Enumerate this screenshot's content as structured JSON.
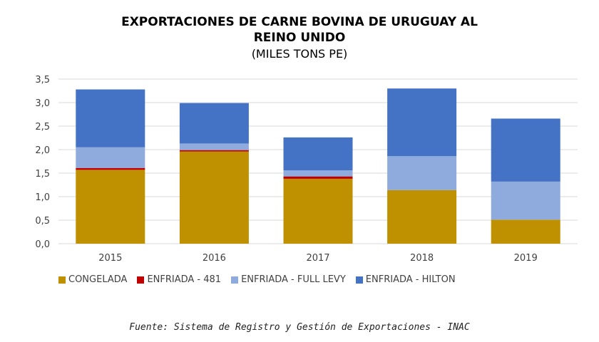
{
  "chart_data": {
    "type": "bar",
    "stacked": true,
    "title": "EXPORTACIONES DE CARNE BOVINA DE URUGUAY AL",
    "title_line2": "REINO UNIDO",
    "subtitle": "(MILES TONS PE)",
    "categories": [
      "2015",
      "2016",
      "2017",
      "2018",
      "2019"
    ],
    "ylim": [
      0,
      3.5
    ],
    "yticks": [
      "0,0",
      "0,5",
      "1,0",
      "1,5",
      "2,0",
      "2,5",
      "3,0",
      "3,5"
    ],
    "grid": true,
    "legend_position": "bottom",
    "series": [
      {
        "name": "CONGELADA",
        "color": "#BF9000",
        "values": [
          1.57,
          1.96,
          1.38,
          1.14,
          0.51
        ]
      },
      {
        "name": "ENFRIADA - 481",
        "color": "#C00000",
        "values": [
          0.04,
          0.03,
          0.05,
          0,
          0
        ]
      },
      {
        "name": "ENFRIADA - FULL LEVY",
        "color": "#8FAADC",
        "values": [
          0.44,
          0.14,
          0.13,
          0.72,
          0.81
        ]
      },
      {
        "name": "ENFRIADA - HILTON",
        "color": "#4472C4",
        "values": [
          1.23,
          0.86,
          0.7,
          1.44,
          1.34
        ]
      }
    ],
    "source": "Fuente: Sistema de Registro y Gestión de Exportaciones - INAC"
  }
}
